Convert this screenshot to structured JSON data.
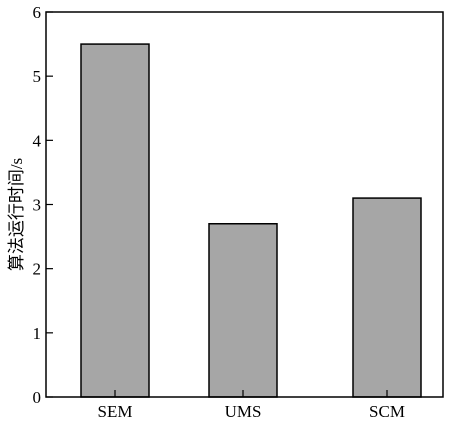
{
  "chart_data": {
    "type": "bar",
    "categories": [
      "SEM",
      "UMS",
      "SCM"
    ],
    "values": [
      5.5,
      2.7,
      3.1
    ],
    "title": "",
    "xlabel": "",
    "ylabel": "算法运行时间/s",
    "ylim": [
      0,
      6
    ],
    "yticks": [
      0,
      1,
      2,
      3,
      4,
      5,
      6
    ],
    "grid": false,
    "legend": "none",
    "bar_color": "#a6a6a6",
    "bar_edge_color": "#000000"
  }
}
